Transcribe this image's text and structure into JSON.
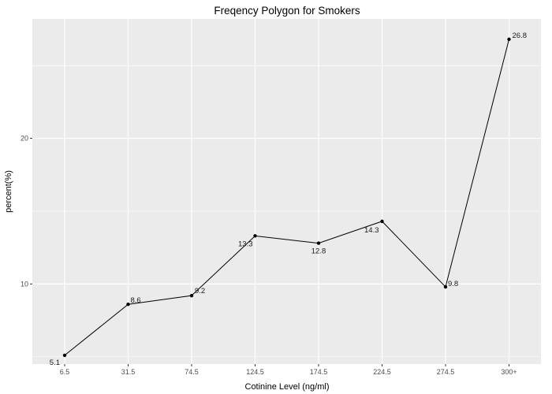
{
  "chart_data": {
    "type": "line",
    "title": "Freqency Polygon for Smokers",
    "xlabel": "Cotinine Level (ng/ml)",
    "ylabel": "percent(%)",
    "categories": [
      "6.5",
      "31.5",
      "74.5",
      "124.5",
      "174.5",
      "224.5",
      "274.5",
      "300+"
    ],
    "series": [
      {
        "values": [
          5.1,
          8.6,
          9.2,
          13.3,
          12.8,
          14.3,
          9.8,
          26.8
        ],
        "labels": [
          "5.1",
          "8.6",
          "9.2",
          "13.3",
          "12.8",
          "14.3",
          "9.8",
          "26.8"
        ]
      }
    ],
    "yticks": [
      10,
      20
    ],
    "ytick_labels": [
      "10",
      "20"
    ],
    "ylim": [
      4.5,
      28.2
    ],
    "grid": true,
    "legend": "none",
    "colors": {
      "panel": "#ebebeb",
      "grid_major": "#ffffff",
      "line": "#000000",
      "point": "#000000"
    }
  }
}
